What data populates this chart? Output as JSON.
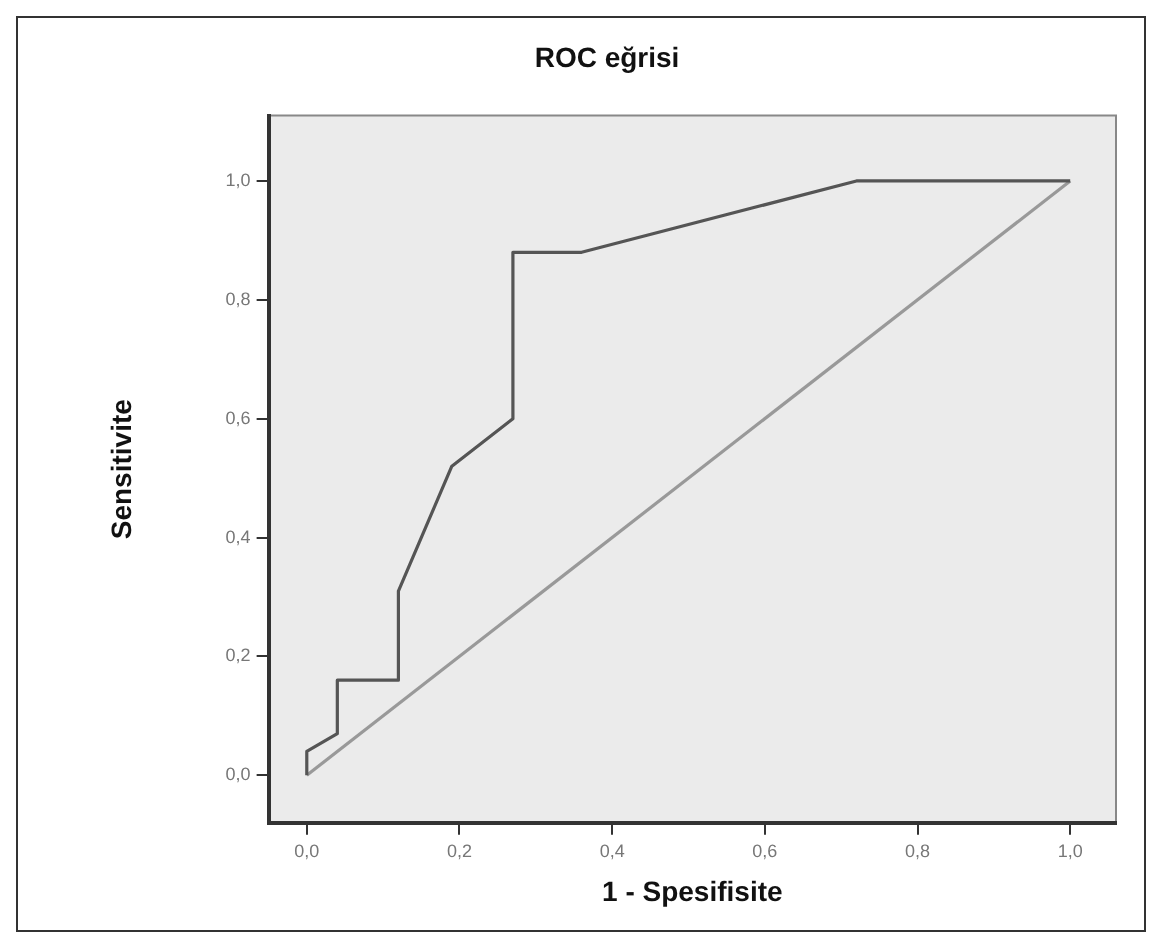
{
  "chart_data": {
    "type": "line",
    "title": "ROC eğrisi",
    "xlabel": "1 - Spesifisite",
    "ylabel": "Sensitivite",
    "xlim": [
      -0.05,
      1.06
    ],
    "ylim": [
      -0.08,
      1.11
    ],
    "xticks": [
      {
        "value": 0,
        "label": "0,0"
      },
      {
        "value": 0.2,
        "label": "0,2"
      },
      {
        "value": 0.4,
        "label": "0,4"
      },
      {
        "value": 0.6,
        "label": "0,6"
      },
      {
        "value": 0.8,
        "label": "0,8"
      },
      {
        "value": 1,
        "label": "1,0"
      }
    ],
    "yticks": [
      {
        "value": 0,
        "label": "0,0"
      },
      {
        "value": 0.2,
        "label": "0,2"
      },
      {
        "value": 0.4,
        "label": "0,4"
      },
      {
        "value": 0.6,
        "label": "0,6"
      },
      {
        "value": 0.8,
        "label": "0,8"
      },
      {
        "value": 1,
        "label": "1,0"
      }
    ],
    "grid": false,
    "legend": false,
    "marker": "none",
    "line_style": "solid",
    "series": [
      {
        "color": "#555555",
        "x": [
          0,
          0,
          0.04,
          0.04,
          0.12,
          0.12,
          0.19,
          0.27,
          0.27,
          0.36,
          0.72,
          1.0
        ],
        "values": [
          0,
          0.04,
          0.07,
          0.16,
          0.16,
          0.31,
          0.52,
          0.6,
          0.88,
          0.88,
          1.0,
          1.0
        ]
      },
      {
        "color": "#999999",
        "x": [
          0,
          1
        ],
        "values": [
          0,
          1
        ]
      }
    ]
  }
}
